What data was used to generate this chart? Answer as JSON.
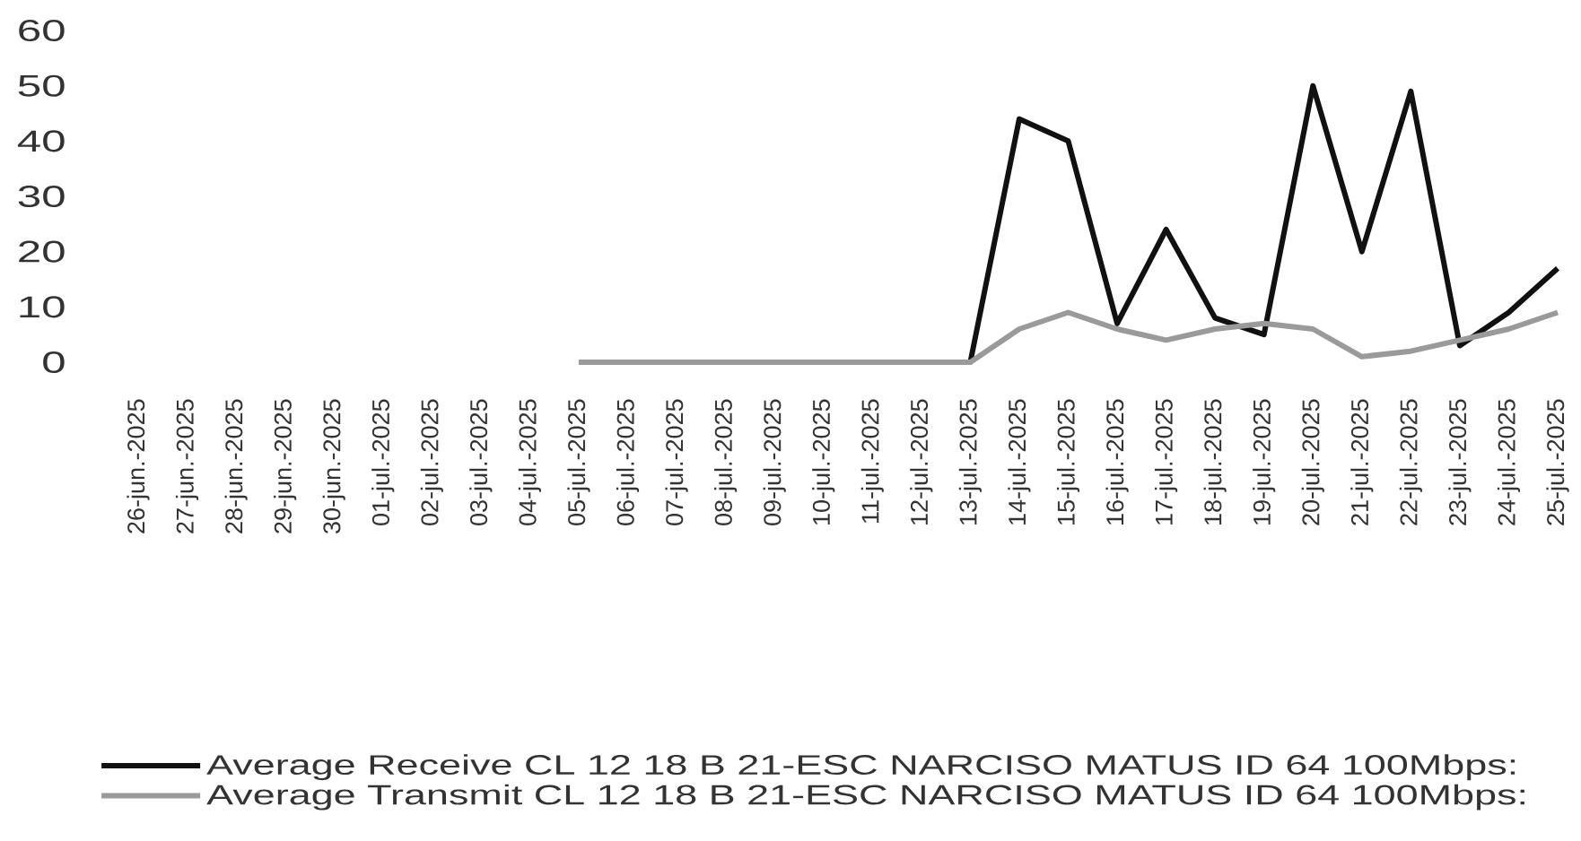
{
  "chart_data": {
    "type": "line",
    "categories": [
      "26-jun.-2025",
      "27-jun.-2025",
      "28-jun.-2025",
      "29-jun.-2025",
      "30-jun.-2025",
      "01-jul.-2025",
      "02-jul.-2025",
      "03-jul.-2025",
      "04-jul.-2025",
      "05-jul.-2025",
      "06-jul.-2025",
      "07-jul.-2025",
      "08-jul.-2025",
      "09-jul.-2025",
      "10-jul.-2025",
      "11-jul.-2025",
      "12-jul.-2025",
      "13-jul.-2025",
      "14-jul.-2025",
      "15-jul.-2025",
      "16-jul.-2025",
      "17-jul.-2025",
      "18-jul.-2025",
      "19-jul.-2025",
      "20-jul.-2025",
      "21-jul.-2025",
      "22-jul.-2025",
      "23-jul.-2025",
      "24-jul.-2025",
      "25-jul.-2025"
    ],
    "series": [
      {
        "name": "Average Receive CL 12 18 B 21-ESC NARCISO MATUS ID 64 100Mbps:",
        "color": "#111111",
        "values": [
          null,
          null,
          null,
          null,
          null,
          null,
          null,
          null,
          null,
          0,
          0,
          0,
          0,
          0,
          0,
          0,
          0,
          0,
          44,
          40,
          7,
          24,
          8,
          5,
          50,
          20,
          49,
          3,
          9,
          17
        ]
      },
      {
        "name": "Average Transmit CL 12 18 B 21-ESC NARCISO MATUS ID 64 100Mbps:",
        "color": "#9a9a9a",
        "values": [
          null,
          null,
          null,
          null,
          null,
          null,
          null,
          null,
          null,
          0,
          0,
          0,
          0,
          0,
          0,
          0,
          0,
          0,
          6,
          9,
          6,
          4,
          6,
          7,
          6,
          1,
          2,
          4,
          6,
          9
        ]
      }
    ],
    "ylim": [
      0,
      60
    ],
    "yticks": [
      0,
      10,
      20,
      30,
      40,
      50,
      60
    ],
    "legend": "bottom"
  }
}
